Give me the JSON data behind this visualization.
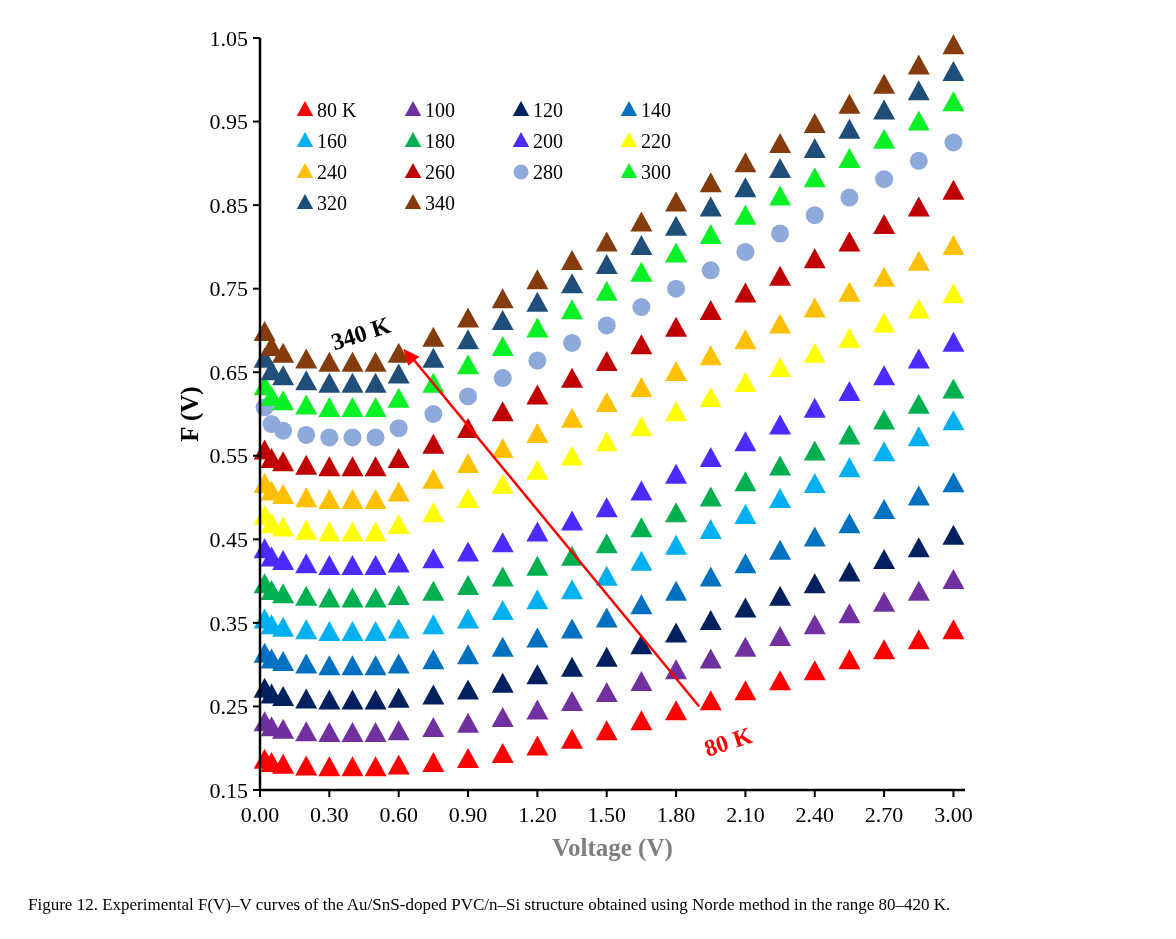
{
  "chart_data": {
    "type": "scatter",
    "xlabel": "Voltage (V)",
    "ylabel": "F (V)",
    "x": [
      0.02,
      0.05,
      0.1,
      0.2,
      0.3,
      0.4,
      0.5,
      0.6,
      0.75,
      0.9,
      1.05,
      1.2,
      1.35,
      1.5,
      1.65,
      1.8,
      1.95,
      2.1,
      2.25,
      2.4,
      2.55,
      2.7,
      2.85,
      3.0
    ],
    "xlim": [
      0,
      3.05
    ],
    "xticks": [
      {
        "value": 0,
        "label": "0.00"
      },
      {
        "value": 0.3,
        "label": "0.30"
      },
      {
        "value": 0.6,
        "label": "0.60"
      },
      {
        "value": 0.9,
        "label": "0.90"
      },
      {
        "value": 1.2,
        "label": "1.20"
      },
      {
        "value": 1.5,
        "label": "1.50"
      },
      {
        "value": 1.8,
        "label": "1.80"
      },
      {
        "value": 2.1,
        "label": "2.10"
      },
      {
        "value": 2.4,
        "label": "2.40"
      },
      {
        "value": 2.7,
        "label": "2.70"
      },
      {
        "value": 3.0,
        "label": "3.00"
      }
    ],
    "ylim": [
      0.15,
      1.05
    ],
    "yticks": [
      0.15,
      0.25,
      0.35,
      0.45,
      0.55,
      0.65,
      0.75,
      0.85,
      0.95,
      1.05
    ],
    "grid": false,
    "legend": "top left",
    "marker": "triangle",
    "series": [
      {
        "name": "80 K",
        "color": "#ff0000",
        "values": [
          0.185,
          0.181,
          0.179,
          0.177,
          0.176,
          0.176,
          0.176,
          0.178,
          0.181,
          0.186,
          0.192,
          0.201,
          0.209,
          0.219,
          0.231,
          0.243,
          0.255,
          0.267,
          0.279,
          0.291,
          0.304,
          0.316,
          0.328,
          0.34
        ]
      },
      {
        "name": "100",
        "color": "#7030a0",
        "values": [
          0.23,
          0.224,
          0.221,
          0.218,
          0.217,
          0.217,
          0.217,
          0.219,
          0.223,
          0.228,
          0.235,
          0.244,
          0.254,
          0.265,
          0.278,
          0.292,
          0.305,
          0.319,
          0.332,
          0.346,
          0.359,
          0.373,
          0.386,
          0.4
        ]
      },
      {
        "name": "120",
        "color": "#002060",
        "values": [
          0.27,
          0.263,
          0.26,
          0.257,
          0.256,
          0.256,
          0.256,
          0.258,
          0.262,
          0.268,
          0.276,
          0.286,
          0.295,
          0.307,
          0.322,
          0.336,
          0.351,
          0.366,
          0.38,
          0.395,
          0.409,
          0.424,
          0.438,
          0.453
        ]
      },
      {
        "name": "140",
        "color": "#0070c0",
        "values": [
          0.312,
          0.305,
          0.302,
          0.299,
          0.297,
          0.297,
          0.297,
          0.299,
          0.304,
          0.31,
          0.319,
          0.33,
          0.341,
          0.354,
          0.37,
          0.386,
          0.403,
          0.419,
          0.435,
          0.451,
          0.467,
          0.484,
          0.5,
          0.516
        ]
      },
      {
        "name": "160",
        "color": "#00b0f0",
        "values": [
          0.353,
          0.346,
          0.343,
          0.34,
          0.338,
          0.338,
          0.338,
          0.341,
          0.346,
          0.353,
          0.363,
          0.376,
          0.388,
          0.404,
          0.422,
          0.441,
          0.46,
          0.478,
          0.497,
          0.515,
          0.534,
          0.553,
          0.571,
          0.59
        ]
      },
      {
        "name": "180",
        "color": "#00b050",
        "values": [
          0.395,
          0.387,
          0.383,
          0.38,
          0.378,
          0.378,
          0.378,
          0.381,
          0.386,
          0.393,
          0.403,
          0.416,
          0.428,
          0.443,
          0.462,
          0.48,
          0.499,
          0.517,
          0.536,
          0.554,
          0.573,
          0.591,
          0.61,
          0.628
        ]
      },
      {
        "name": "200",
        "color": "#4b2bff",
        "values": [
          0.437,
          0.427,
          0.423,
          0.419,
          0.417,
          0.417,
          0.417,
          0.42,
          0.425,
          0.433,
          0.444,
          0.457,
          0.47,
          0.486,
          0.506,
          0.526,
          0.546,
          0.565,
          0.585,
          0.605,
          0.625,
          0.644,
          0.664,
          0.684
        ]
      },
      {
        "name": "220",
        "color": "#ffff00",
        "values": [
          0.477,
          0.467,
          0.463,
          0.459,
          0.457,
          0.457,
          0.457,
          0.466,
          0.48,
          0.497,
          0.514,
          0.531,
          0.548,
          0.565,
          0.583,
          0.601,
          0.618,
          0.636,
          0.654,
          0.671,
          0.689,
          0.707,
          0.724,
          0.742
        ]
      },
      {
        "name": "240",
        "color": "#ffc000",
        "values": [
          0.515,
          0.506,
          0.502,
          0.498,
          0.496,
          0.496,
          0.496,
          0.505,
          0.52,
          0.539,
          0.557,
          0.575,
          0.593,
          0.612,
          0.63,
          0.649,
          0.668,
          0.687,
          0.706,
          0.725,
          0.744,
          0.762,
          0.781,
          0.8
        ]
      },
      {
        "name": "260",
        "color": "#c00000",
        "values": [
          0.555,
          0.545,
          0.541,
          0.537,
          0.535,
          0.535,
          0.535,
          0.545,
          0.562,
          0.581,
          0.601,
          0.621,
          0.641,
          0.661,
          0.681,
          0.702,
          0.722,
          0.743,
          0.763,
          0.784,
          0.804,
          0.825,
          0.846,
          0.866
        ]
      },
      {
        "name": "280",
        "color": "#8eaadb",
        "marker": "circle",
        "values": [
          0.608,
          0.588,
          0.58,
          0.575,
          0.572,
          0.572,
          0.572,
          0.583,
          0.6,
          0.621,
          0.643,
          0.664,
          0.685,
          0.706,
          0.728,
          0.75,
          0.772,
          0.794,
          0.816,
          0.838,
          0.859,
          0.881,
          0.903,
          0.925
        ]
      },
      {
        "name": "300",
        "color": "#0af026",
        "values": [
          0.632,
          0.619,
          0.614,
          0.609,
          0.606,
          0.606,
          0.606,
          0.617,
          0.635,
          0.657,
          0.679,
          0.701,
          0.723,
          0.745,
          0.768,
          0.791,
          0.813,
          0.836,
          0.859,
          0.881,
          0.904,
          0.927,
          0.949,
          0.972
        ]
      },
      {
        "name": "320",
        "color": "#1f4e79",
        "values": [
          0.665,
          0.65,
          0.644,
          0.638,
          0.635,
          0.635,
          0.635,
          0.646,
          0.665,
          0.687,
          0.71,
          0.732,
          0.754,
          0.777,
          0.8,
          0.823,
          0.846,
          0.869,
          0.892,
          0.916,
          0.939,
          0.962,
          0.985,
          1.008
        ]
      },
      {
        "name": "340",
        "color": "#843c0c",
        "values": [
          0.697,
          0.679,
          0.671,
          0.664,
          0.66,
          0.66,
          0.66,
          0.671,
          0.69,
          0.713,
          0.736,
          0.759,
          0.782,
          0.804,
          0.828,
          0.852,
          0.875,
          0.899,
          0.922,
          0.946,
          0.969,
          0.993,
          1.016,
          1.04
        ]
      }
    ],
    "annotations": [
      {
        "text": "340 K",
        "x": 0.62,
        "y": 0.678
      },
      {
        "text": "80 K",
        "x": 1.9,
        "y": 0.25
      },
      "Figure 12. Experimental F(V)–V curves of the Au/SnS-doped PVC/n–Si structure obtained using Norde method in the range 80–420 K."
    ]
  }
}
